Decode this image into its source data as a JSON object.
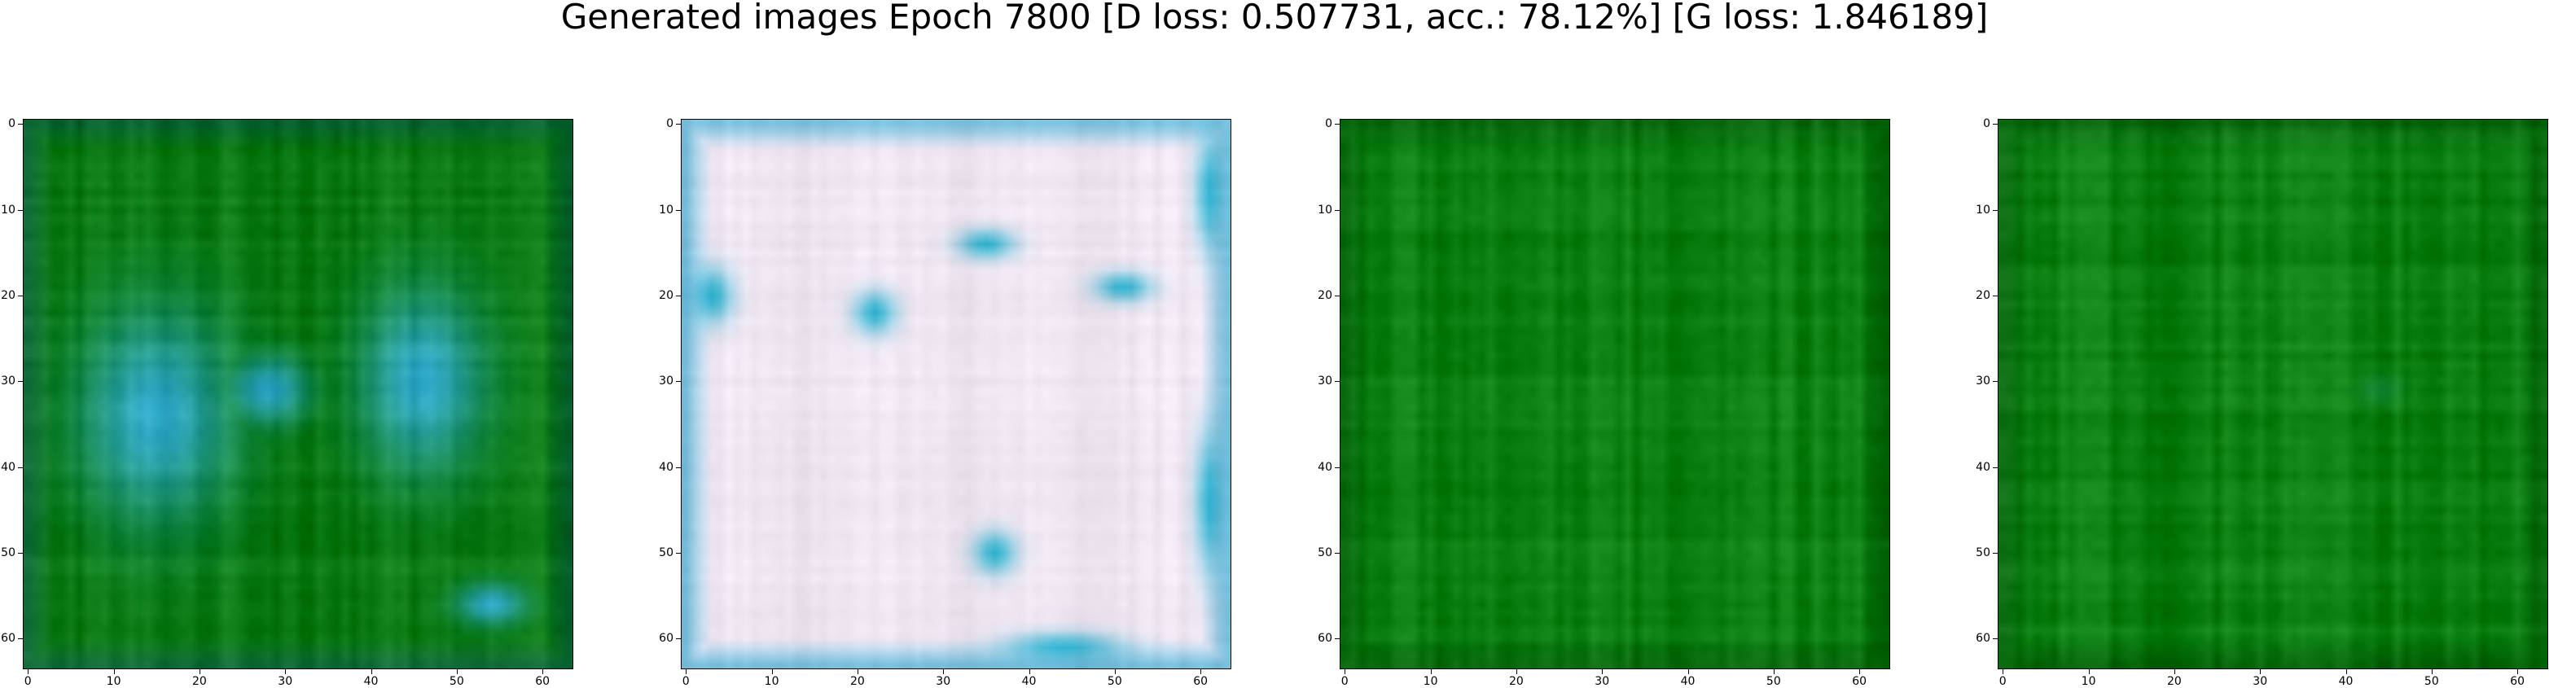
{
  "figure": {
    "title": "Generated images Epoch 7800 [D loss: 0.507731, acc.: 78.12%] [G loss: 1.846189]",
    "panels": [
      {
        "name": "generated-image-1",
        "description": "greenish background with two large cyan blobs",
        "palette": {
          "base": "#0a7a12",
          "accent": "#2fa9c9",
          "edge": "#0c5a4a"
        },
        "blobs": [
          {
            "cx": 15,
            "cy": 34,
            "rx": 11,
            "ry": 15
          },
          {
            "cx": 46,
            "cy": 30,
            "rx": 9,
            "ry": 13
          },
          {
            "cx": 28,
            "cy": 31,
            "rx": 6,
            "ry": 5
          },
          {
            "cx": 54,
            "cy": 56,
            "rx": 5,
            "ry": 3
          }
        ]
      },
      {
        "name": "generated-image-2",
        "description": "pale pinkish-white background with cyan spots",
        "palette": {
          "base": "#efe6f2",
          "accent": "#2fb3cf",
          "edge": "#2ca7cf"
        },
        "blobs": [
          {
            "cx": 3,
            "cy": 20,
            "rx": 3,
            "ry": 4
          },
          {
            "cx": 22,
            "cy": 22,
            "rx": 3,
            "ry": 3
          },
          {
            "cx": 35,
            "cy": 14,
            "rx": 4,
            "ry": 2
          },
          {
            "cx": 51,
            "cy": 19,
            "rx": 4,
            "ry": 2
          },
          {
            "cx": 36,
            "cy": 50,
            "rx": 3,
            "ry": 3
          },
          {
            "cx": 44,
            "cy": 61,
            "rx": 8,
            "ry": 2
          },
          {
            "cx": 61,
            "cy": 44,
            "rx": 2,
            "ry": 10
          },
          {
            "cx": 61,
            "cy": 8,
            "rx": 2,
            "ry": 8
          }
        ]
      },
      {
        "name": "generated-image-3",
        "description": "almost uniform green",
        "palette": {
          "base": "#0a7e10",
          "accent": "#0f8a18",
          "edge": "#075a0d"
        },
        "blobs": []
      },
      {
        "name": "generated-image-4",
        "description": "almost uniform green",
        "palette": {
          "base": "#0a7e10",
          "accent": "#1a8a3a",
          "edge": "#075a0d"
        },
        "blobs": [
          {
            "cx": 44,
            "cy": 31,
            "rx": 3,
            "ry": 2
          }
        ]
      }
    ],
    "axes": {
      "x_ticks": [
        "0",
        "10",
        "20",
        "30",
        "40",
        "50",
        "60"
      ],
      "y_ticks": [
        "0",
        "10",
        "20",
        "30",
        "40",
        "50",
        "60"
      ],
      "x_tick_values": [
        0,
        10,
        20,
        30,
        40,
        50,
        60
      ],
      "y_tick_values": [
        0,
        10,
        20,
        30,
        40,
        50,
        60
      ],
      "extent": [
        -0.5,
        63.5
      ]
    }
  }
}
